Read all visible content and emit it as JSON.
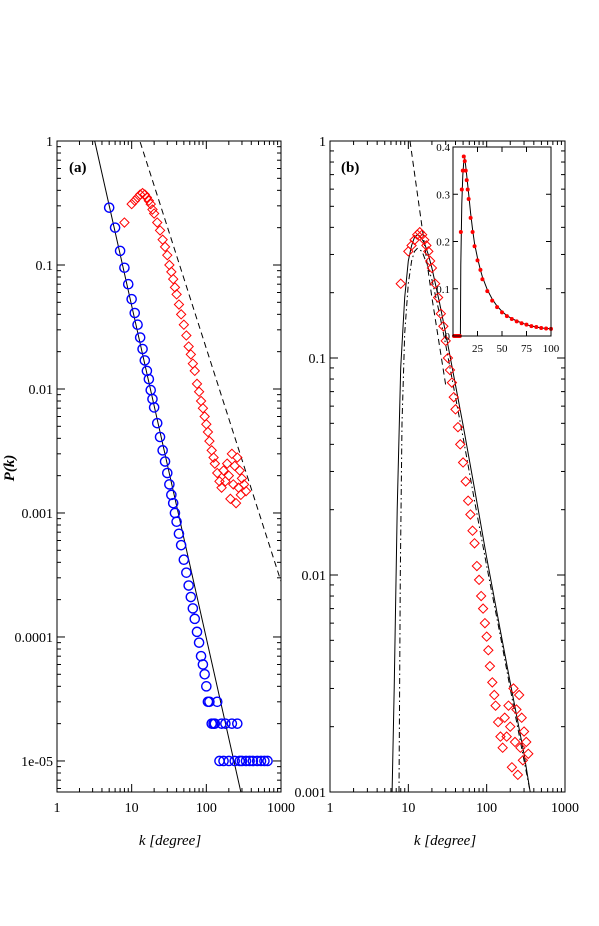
{
  "chart_data": [
    {
      "panel": "(a)",
      "type": "scatter",
      "scale": {
        "x": "log",
        "y": "log"
      },
      "xlim": [
        1,
        1000
      ],
      "ylim": [
        5.62e-06,
        1
      ],
      "x_ticks": [
        1,
        10,
        100,
        1000
      ],
      "x_tick_labels": [
        "1",
        "10",
        "100",
        "1000"
      ],
      "y_ticks": [
        1,
        0.1,
        0.01,
        0.001,
        0.0001,
        1e-05
      ],
      "y_tick_labels": [
        "1",
        "0.1",
        "0.01",
        "0.001",
        "0.0001",
        "1e-05"
      ],
      "xlabel": "k [degree]",
      "ylabel": "P(k)",
      "grid": false,
      "series": [
        {
          "marker": "circle",
          "color": "#0000ff",
          "x": [
            5,
            6,
            7,
            8,
            9,
            10,
            11,
            12,
            13,
            14,
            15,
            16,
            17,
            18,
            19,
            20,
            22,
            24,
            26,
            28,
            30,
            32,
            34,
            36,
            38,
            40,
            43,
            46,
            50,
            54,
            58,
            62,
            66,
            70,
            75,
            80,
            85,
            90,
            95,
            100,
            105,
            110,
            118,
            125,
            130,
            140,
            150,
            160,
            170,
            180,
            200,
            220,
            240,
            260,
            280,
            300,
            340,
            380,
            420,
            480,
            540,
            600,
            660
          ],
          "y": [
            0.29,
            0.2,
            0.13,
            0.095,
            0.07,
            0.053,
            0.041,
            0.033,
            0.026,
            0.021,
            0.017,
            0.014,
            0.012,
            0.0098,
            0.0083,
            0.0071,
            0.0053,
            0.0041,
            0.0032,
            0.0026,
            0.0021,
            0.0017,
            0.0014,
            0.0012,
            0.001,
            0.00085,
            0.00068,
            0.00055,
            0.00042,
            0.00033,
            0.00026,
            0.00021,
            0.00017,
            0.00014,
            0.00011,
            9e-05,
            7e-05,
            6e-05,
            5e-05,
            4e-05,
            3e-05,
            3e-05,
            2e-05,
            2e-05,
            2e-05,
            3e-05,
            1e-05,
            2e-05,
            1e-05,
            2e-05,
            1e-05,
            2e-05,
            1e-05,
            2e-05,
            1e-05,
            1e-05,
            1e-05,
            1e-05,
            1e-05,
            1e-05,
            1e-05,
            1e-05,
            1e-05
          ]
        },
        {
          "marker": "diamond",
          "color": "#ff0000",
          "x": [
            8,
            10,
            11,
            12,
            13,
            14,
            15,
            16,
            17,
            18,
            19,
            20,
            22,
            24,
            26,
            28,
            30,
            32,
            34,
            36,
            38,
            40,
            43,
            46,
            50,
            54,
            58,
            62,
            66,
            70,
            75,
            80,
            85,
            90,
            95,
            100,
            105,
            110,
            118,
            125,
            130,
            140,
            150,
            160,
            170,
            180,
            190,
            200,
            210,
            220,
            230,
            240,
            250,
            260,
            270,
            280,
            290,
            300,
            320,
            340
          ],
          "y": [
            0.22,
            0.31,
            0.33,
            0.35,
            0.37,
            0.38,
            0.37,
            0.35,
            0.33,
            0.31,
            0.28,
            0.26,
            0.22,
            0.19,
            0.16,
            0.14,
            0.12,
            0.1,
            0.088,
            0.077,
            0.066,
            0.058,
            0.048,
            0.04,
            0.033,
            0.027,
            0.022,
            0.019,
            0.016,
            0.014,
            0.011,
            0.0095,
            0.008,
            0.007,
            0.006,
            0.0052,
            0.0045,
            0.0038,
            0.0032,
            0.0028,
            0.0025,
            0.0021,
            0.0018,
            0.0016,
            0.0022,
            0.0018,
            0.0025,
            0.002,
            0.0013,
            0.003,
            0.0017,
            0.0024,
            0.0012,
            0.0028,
            0.0016,
            0.0022,
            0.0014,
            0.0019,
            0.0017,
            0.0015
          ]
        }
      ],
      "fit_lines": [
        {
          "style": "solid",
          "color": "#000000",
          "x": [
            3.2,
            290
          ],
          "y": [
            1.0,
            5.6e-06
          ]
        },
        {
          "style": "dashed",
          "color": "#000000",
          "x": [
            13,
            1000
          ],
          "y": [
            0.98,
            0.00028
          ]
        }
      ]
    },
    {
      "panel": "(b)",
      "type": "scatter",
      "scale": {
        "x": "log",
        "y": "log"
      },
      "xlim": [
        1,
        1000
      ],
      "ylim": [
        0.001,
        1
      ],
      "x_ticks": [
        1,
        10,
        100,
        1000
      ],
      "x_tick_labels": [
        "1",
        "10",
        "100",
        "1000"
      ],
      "y_ticks": [
        1,
        0.1,
        0.01,
        0.001
      ],
      "y_tick_labels": [
        "1",
        "0.1",
        "0.01",
        "0.001"
      ],
      "xlabel": "k [degree]",
      "ylabel": "",
      "grid": false,
      "series": [
        {
          "marker": "diamond",
          "color": "#ff0000",
          "x": [
            8,
            10,
            11,
            12,
            13,
            14,
            15,
            16,
            17,
            18,
            19,
            20,
            22,
            24,
            26,
            28,
            30,
            32,
            34,
            36,
            38,
            40,
            43,
            46,
            50,
            54,
            58,
            62,
            66,
            70,
            75,
            80,
            85,
            90,
            95,
            100,
            105,
            110,
            118,
            125,
            130,
            140,
            150,
            160,
            170,
            180,
            190,
            200,
            210,
            220,
            230,
            240,
            250,
            260,
            270,
            280,
            290,
            300,
            320,
            340
          ],
          "y": [
            0.22,
            0.31,
            0.33,
            0.35,
            0.37,
            0.38,
            0.37,
            0.35,
            0.33,
            0.31,
            0.28,
            0.26,
            0.22,
            0.19,
            0.16,
            0.14,
            0.12,
            0.1,
            0.088,
            0.077,
            0.066,
            0.058,
            0.048,
            0.04,
            0.033,
            0.027,
            0.022,
            0.019,
            0.016,
            0.014,
            0.011,
            0.0095,
            0.008,
            0.007,
            0.006,
            0.0052,
            0.0045,
            0.0038,
            0.0032,
            0.0028,
            0.0025,
            0.0021,
            0.0018,
            0.0016,
            0.0022,
            0.0018,
            0.0025,
            0.002,
            0.0013,
            0.003,
            0.0017,
            0.0024,
            0.0012,
            0.0028,
            0.0016,
            0.0022,
            0.0014,
            0.0019,
            0.0017,
            0.0015
          ]
        }
      ],
      "fit_lines": [
        {
          "style": "solid",
          "color": "#000000",
          "x": [
            6.2,
            6.6,
            7.2,
            8,
            9,
            10,
            11,
            12,
            13,
            14,
            16,
            18,
            20,
            25,
            30,
            40,
            50,
            70,
            100,
            150,
            200,
            300,
            360
          ],
          "y": [
            0.001,
            0.003,
            0.02,
            0.09,
            0.19,
            0.28,
            0.33,
            0.36,
            0.37,
            0.365,
            0.34,
            0.3,
            0.26,
            0.18,
            0.13,
            0.075,
            0.049,
            0.025,
            0.012,
            0.0055,
            0.0032,
            0.0015,
            0.001
          ]
        },
        {
          "style": "dashdot",
          "color": "#000000",
          "x": [
            7.6,
            7.9,
            8.3,
            9,
            10,
            11,
            12,
            13,
            15,
            18,
            20,
            25,
            30,
            40,
            50,
            70,
            100,
            150,
            200,
            300,
            360
          ],
          "y": [
            0.001,
            0.01,
            0.05,
            0.13,
            0.22,
            0.28,
            0.31,
            0.32,
            0.31,
            0.26,
            0.23,
            0.16,
            0.115,
            0.066,
            0.043,
            0.022,
            0.011,
            0.0052,
            0.003,
            0.0014,
            0.001
          ]
        },
        {
          "style": "dashed",
          "color": "#000000",
          "x": [
            10.5,
            20,
            30
          ],
          "y": [
            1.0,
            0.19,
            0.075
          ]
        }
      ],
      "inset": {
        "type": "line",
        "scale": {
          "x": "linear",
          "y": "linear"
        },
        "xlim": [
          0,
          100
        ],
        "ylim": [
          0,
          0.4
        ],
        "x_ticks": [
          25,
          50,
          75,
          100
        ],
        "x_tick_labels": [
          "25",
          "50",
          "75",
          "100"
        ],
        "y_ticks": [
          0,
          0.1,
          0.2,
          0.3,
          0.4
        ],
        "y_tick_labels": [
          "0",
          "0.1",
          "0.2",
          "0.3",
          "0.4"
        ],
        "points_color": "#ff0000",
        "x": [
          1,
          2,
          3,
          4,
          5,
          6,
          7,
          8,
          9,
          10,
          11,
          12,
          13,
          14,
          15,
          16,
          18,
          20,
          22,
          25,
          28,
          30,
          35,
          40,
          45,
          50,
          55,
          60,
          65,
          70,
          75,
          80,
          85,
          90,
          95,
          100
        ],
        "y": [
          0,
          0,
          0,
          0,
          0,
          0,
          0,
          0.22,
          0.31,
          0.35,
          0.38,
          0.37,
          0.35,
          0.33,
          0.31,
          0.29,
          0.25,
          0.22,
          0.19,
          0.16,
          0.14,
          0.12,
          0.095,
          0.075,
          0.061,
          0.05,
          0.042,
          0.036,
          0.031,
          0.027,
          0.024,
          0.021,
          0.019,
          0.017,
          0.016,
          0.015
        ],
        "fit_x": [
          7.5,
          8,
          9,
          10,
          11,
          12,
          13,
          14,
          15,
          16,
          18,
          20,
          22,
          25,
          28,
          30,
          35,
          40,
          45,
          50,
          55,
          60,
          65,
          70,
          75,
          80,
          85,
          90,
          95,
          100
        ],
        "fit_y": [
          0,
          0.15,
          0.28,
          0.34,
          0.37,
          0.375,
          0.36,
          0.34,
          0.32,
          0.3,
          0.26,
          0.225,
          0.195,
          0.165,
          0.14,
          0.125,
          0.098,
          0.078,
          0.063,
          0.052,
          0.043,
          0.037,
          0.032,
          0.028,
          0.024,
          0.021,
          0.019,
          0.017,
          0.016,
          0.015
        ]
      }
    }
  ]
}
